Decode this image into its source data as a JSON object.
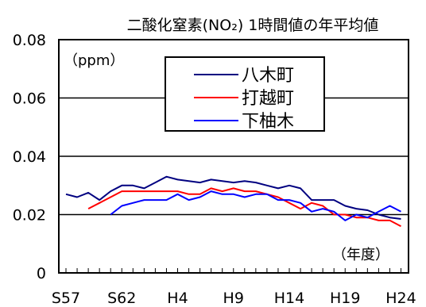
{
  "chart_data": {
    "type": "line",
    "title": "二酸化窒素(NO₂) 1時間値の年平均値",
    "unit_label": "（ppm）",
    "xlabel": "（年度）",
    "ylim": [
      0,
      0.08
    ],
    "y_ticks": [
      "0",
      "0.02",
      "0.04",
      "0.06",
      "0.08"
    ],
    "y_tick_values": [
      0,
      0.02,
      0.04,
      0.06,
      0.08
    ],
    "grid": "horizontal at 0.02, 0.04, 0.06",
    "legend_placement": "top-center",
    "x": [
      "S57",
      "S58",
      "S59",
      "S60",
      "S61",
      "S62",
      "S63",
      "H1",
      "H2",
      "H3",
      "H4",
      "H5",
      "H6",
      "H7",
      "H8",
      "H9",
      "H10",
      "H11",
      "H12",
      "H13",
      "H14",
      "H15",
      "H16",
      "H17",
      "H18",
      "H19",
      "H20",
      "H21",
      "H22",
      "H23",
      "H24"
    ],
    "x_tick_labels": [
      {
        "label": "S57",
        "index": 0
      },
      {
        "label": "S62",
        "index": 5
      },
      {
        "label": "H4",
        "index": 10
      },
      {
        "label": "H9",
        "index": 15
      },
      {
        "label": "H14",
        "index": 20
      },
      {
        "label": "H19",
        "index": 25
      },
      {
        "label": "H24",
        "index": 30
      }
    ],
    "series": [
      {
        "name": "八木町",
        "color": "#000080",
        "values": [
          0.027,
          0.026,
          0.0275,
          0.025,
          0.028,
          0.03,
          0.03,
          0.029,
          0.031,
          0.033,
          0.032,
          0.0315,
          0.031,
          0.032,
          0.0315,
          0.031,
          0.0315,
          0.031,
          0.03,
          0.029,
          0.03,
          0.029,
          0.025,
          0.025,
          0.025,
          0.023,
          0.022,
          0.0215,
          0.02,
          0.019,
          0.0185
        ]
      },
      {
        "name": "打越町",
        "color": "#ff0000",
        "values": [
          null,
          null,
          0.022,
          0.024,
          0.026,
          0.028,
          0.028,
          0.028,
          0.028,
          0.028,
          0.028,
          0.027,
          0.027,
          0.029,
          0.028,
          0.029,
          0.028,
          0.028,
          0.027,
          0.026,
          0.024,
          0.022,
          0.024,
          0.023,
          0.02,
          0.02,
          0.019,
          0.019,
          0.018,
          0.018,
          0.016
        ]
      },
      {
        "name": "下柚木",
        "color": "#0000ff",
        "values": [
          null,
          null,
          null,
          null,
          0.02,
          0.023,
          0.024,
          0.025,
          0.025,
          0.025,
          0.027,
          0.025,
          0.026,
          0.028,
          0.027,
          0.027,
          0.026,
          0.027,
          0.027,
          0.025,
          0.025,
          0.024,
          0.021,
          0.022,
          0.021,
          0.018,
          0.02,
          0.019,
          0.021,
          0.023,
          0.021
        ]
      }
    ]
  }
}
